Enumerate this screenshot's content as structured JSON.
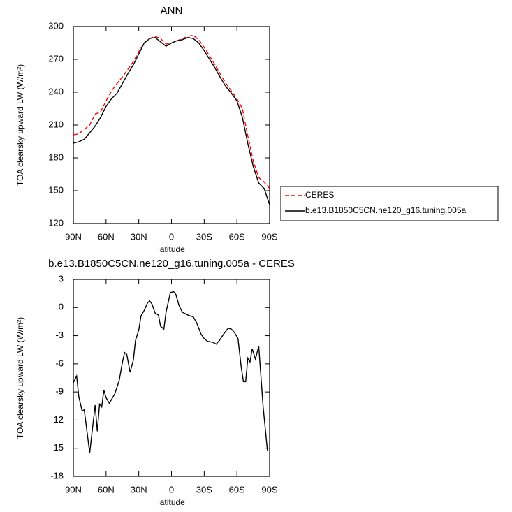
{
  "chart_data": [
    {
      "type": "line",
      "title": "ANN",
      "x_label": "latitude",
      "y_label": "TOA clearsky upward LW (W/m²)",
      "x": [
        90,
        85,
        80,
        75,
        70,
        65,
        60,
        55,
        50,
        45,
        40,
        35,
        30,
        25,
        20,
        15,
        10,
        5,
        0,
        -5,
        -10,
        -15,
        -20,
        -25,
        -30,
        -35,
        -40,
        -45,
        -50,
        -55,
        -60,
        -65,
        -70,
        -75,
        -80,
        -85,
        -90
      ],
      "series": [
        {
          "name": "CERES",
          "color": "#ff0000",
          "style": "dashed",
          "values": [
            201,
            202,
            206,
            210,
            220,
            222,
            232,
            241,
            248,
            254,
            261,
            268,
            277,
            285,
            289,
            291,
            289,
            284,
            285,
            287,
            289,
            291,
            292,
            288,
            281,
            273,
            265,
            256,
            248,
            241,
            234,
            225,
            200,
            177,
            162,
            158,
            152
          ]
        },
        {
          "name": "b.e13.B1850C5CN.ne120_g16.tuning.005a",
          "color": "#000000",
          "style": "solid",
          "values": [
            193.4,
            194.7,
            197,
            203,
            209,
            217,
            227,
            234,
            239,
            248,
            257,
            265,
            275,
            285,
            289,
            290,
            286,
            282,
            285,
            287,
            288,
            290,
            289,
            285,
            278,
            270,
            262,
            253,
            245,
            239,
            232,
            217,
            193,
            172,
            157,
            152,
            137
          ]
        }
      ],
      "xlim": [
        90,
        -90
      ],
      "xticks": [
        {
          "value": 90,
          "label": "90N"
        },
        {
          "value": 60,
          "label": "60N"
        },
        {
          "value": 30,
          "label": "30N"
        },
        0,
        {
          "value": -30,
          "label": "30S"
        },
        {
          "value": -60,
          "label": "60S"
        },
        {
          "value": -90,
          "label": "90S"
        }
      ],
      "ylim": [
        120,
        300
      ],
      "yticks": [
        120,
        150,
        180,
        210,
        240,
        270,
        300
      ],
      "legend": "right"
    },
    {
      "type": "line",
      "title": "b.e13.B1850C5CN.ne120_g16.tuning.005a - CERES",
      "x_label": "latitude",
      "y_label": "TOA clearsky upward LW (W/m²)",
      "x": [
        90,
        87,
        85,
        82,
        80,
        75,
        70,
        68,
        66,
        64,
        62,
        60,
        57,
        52,
        48,
        45,
        43,
        41,
        38,
        35,
        33,
        30,
        28,
        25,
        22,
        20,
        18,
        15,
        12,
        10,
        7,
        5,
        1,
        -2,
        -4,
        -7,
        -10,
        -15,
        -20,
        -23,
        -27,
        -30,
        -33,
        -38,
        -41,
        -44,
        -48,
        -52,
        -55,
        -58,
        -61,
        -64,
        -66,
        -68,
        -70,
        -72,
        -74,
        -77,
        -80,
        -84,
        -88
      ],
      "values": [
        -8,
        -7.3,
        -9.5,
        -11,
        -10.9,
        -15.5,
        -10.4,
        -13.2,
        -10.3,
        -10.6,
        -8.8,
        -9.6,
        -10.2,
        -9.2,
        -7.8,
        -5.8,
        -4.8,
        -5,
        -6.9,
        -5.6,
        -3.5,
        -2.4,
        -0.9,
        -0.3,
        0.5,
        0.7,
        0.4,
        -0.6,
        -0.8,
        -2,
        -2.3,
        -0.5,
        1.6,
        1.7,
        1.4,
        0.2,
        -0.5,
        -0.8,
        -1,
        -1.6,
        -2.8,
        -3.3,
        -3.6,
        -3.7,
        -3.9,
        -3.5,
        -2.8,
        -2.2,
        -2.3,
        -2.7,
        -3.3,
        -6.4,
        -7.9,
        -7.9,
        -5.4,
        -5.8,
        -4.4,
        -5.5,
        -4.1,
        -10.5,
        -15.3
      ],
      "color": "#000000",
      "xlim": [
        90,
        -90
      ],
      "xticks": [
        {
          "value": 90,
          "label": "90N"
        },
        {
          "value": 60,
          "label": "60N"
        },
        {
          "value": 30,
          "label": "30N"
        },
        0,
        {
          "value": -30,
          "label": "30S"
        },
        {
          "value": -60,
          "label": "60S"
        },
        {
          "value": -90,
          "label": "90S"
        }
      ],
      "ylim": [
        -18,
        3
      ],
      "yticks": [
        -18,
        -15,
        -12,
        -9,
        -6,
        -3,
        0,
        3
      ]
    }
  ]
}
